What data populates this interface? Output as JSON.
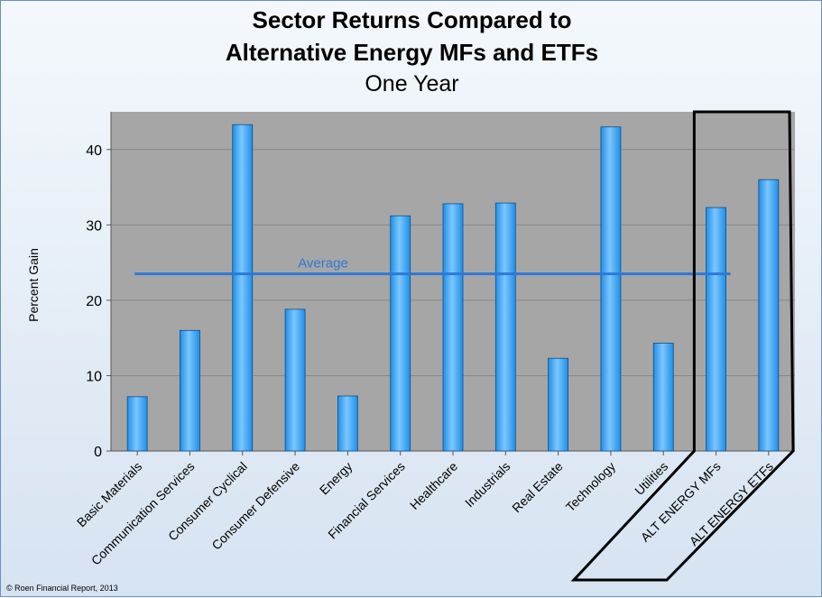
{
  "title_lines": [
    "Sector Returns Compared to",
    "Alternative Energy MFs and ETFs"
  ],
  "subtitle": "One Year",
  "copyright": "© Roen Financial Report, 2013",
  "colors": {
    "bar": "#1f8fe6",
    "bar_highlight": "#7cc6ff",
    "plot_background": "#a6a6a6",
    "gridline": "#888888",
    "average_line": "#2e79d6",
    "highlight_box": "#000000"
  },
  "chart_data": {
    "type": "bar",
    "title": "Sector Returns Compared to Alternative Energy MFs and ETFs",
    "subtitle": "One Year",
    "xlabel": "",
    "ylabel": "Percent Gain",
    "ylim": [
      0,
      45
    ],
    "yticks": [
      0,
      10,
      20,
      30,
      40
    ],
    "grid": "horizontal",
    "categories": [
      "Basic Materials",
      "Communication Services",
      "Consumer Cyclical",
      "Consumer Defensive",
      "Energy",
      "Financial Services",
      "Healthcare",
      "Industrials",
      "Real Estate",
      "Technology",
      "Utilities",
      "ALT ENERGY MFs",
      "ALT ENERGY ETFs"
    ],
    "values": [
      7.2,
      16.0,
      43.3,
      18.8,
      7.3,
      31.2,
      32.8,
      32.9,
      12.3,
      43.0,
      14.3,
      32.3,
      36.0
    ],
    "average": {
      "label": "Average",
      "value": 23.5
    },
    "highlighted_categories": [
      "ALT ENERGY MFs",
      "ALT ENERGY ETFs"
    ]
  }
}
